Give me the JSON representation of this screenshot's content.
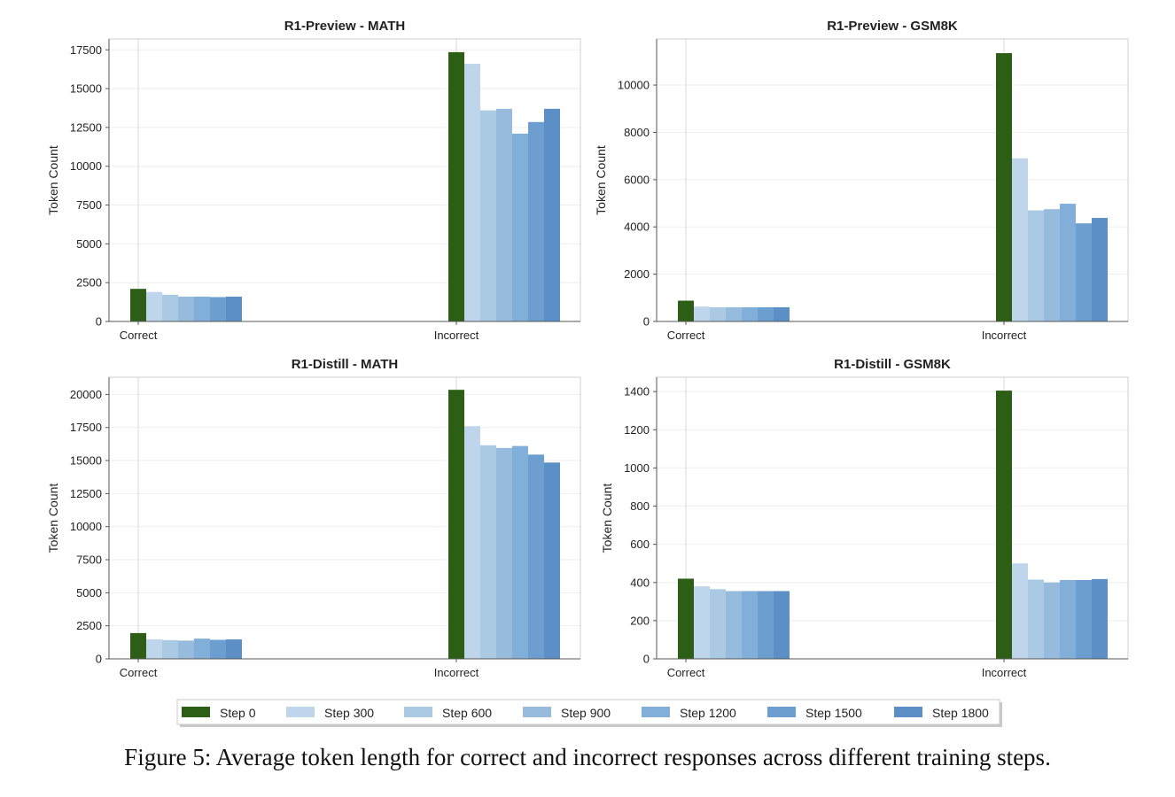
{
  "chart_data": [
    {
      "type": "bar",
      "title": "R1-Preview - MATH",
      "xlabel": "",
      "ylabel": "Token Count",
      "categories": [
        "Correct",
        "Incorrect"
      ],
      "ylim": [
        0,
        18200
      ],
      "yticks": [
        0,
        2500,
        5000,
        7500,
        10000,
        12500,
        15000,
        17500
      ],
      "grid": true,
      "series": [
        {
          "name": "Step 0",
          "values": [
            2100,
            17350
          ]
        },
        {
          "name": "Step 300",
          "values": [
            1900,
            16600
          ]
        },
        {
          "name": "Step 600",
          "values": [
            1720,
            13600
          ]
        },
        {
          "name": "Step 900",
          "values": [
            1600,
            13700
          ]
        },
        {
          "name": "Step 1200",
          "values": [
            1600,
            12100
          ]
        },
        {
          "name": "Step 1500",
          "values": [
            1570,
            12850
          ]
        },
        {
          "name": "Step 1800",
          "values": [
            1600,
            13700
          ]
        }
      ]
    },
    {
      "type": "bar",
      "title": "R1-Preview - GSM8K",
      "xlabel": "",
      "ylabel": "Token Count",
      "categories": [
        "Correct",
        "Incorrect"
      ],
      "ylim": [
        0,
        11950
      ],
      "yticks": [
        0,
        2000,
        4000,
        6000,
        8000,
        10000
      ],
      "grid": true,
      "series": [
        {
          "name": "Step 0",
          "values": [
            880,
            11350
          ]
        },
        {
          "name": "Step 300",
          "values": [
            630,
            6900
          ]
        },
        {
          "name": "Step 600",
          "values": [
            600,
            4700
          ]
        },
        {
          "name": "Step 900",
          "values": [
            600,
            4750
          ]
        },
        {
          "name": "Step 1200",
          "values": [
            600,
            4980
          ]
        },
        {
          "name": "Step 1500",
          "values": [
            600,
            4150
          ]
        },
        {
          "name": "Step 1800",
          "values": [
            600,
            4380
          ]
        }
      ]
    },
    {
      "type": "bar",
      "title": "R1-Distill - MATH",
      "xlabel": "",
      "ylabel": "Token Count",
      "categories": [
        "Correct",
        "Incorrect"
      ],
      "ylim": [
        0,
        21300
      ],
      "yticks": [
        0,
        2500,
        5000,
        7500,
        10000,
        12500,
        15000,
        17500,
        20000
      ],
      "grid": true,
      "series": [
        {
          "name": "Step 0",
          "values": [
            1950,
            20350
          ]
        },
        {
          "name": "Step 300",
          "values": [
            1480,
            17600
          ]
        },
        {
          "name": "Step 600",
          "values": [
            1420,
            16150
          ]
        },
        {
          "name": "Step 900",
          "values": [
            1380,
            15950
          ]
        },
        {
          "name": "Step 1200",
          "values": [
            1530,
            16100
          ]
        },
        {
          "name": "Step 1500",
          "values": [
            1440,
            15450
          ]
        },
        {
          "name": "Step 1800",
          "values": [
            1470,
            14850
          ]
        }
      ]
    },
    {
      "type": "bar",
      "title": "R1-Distill - GSM8K",
      "xlabel": "",
      "ylabel": "Token Count",
      "categories": [
        "Correct",
        "Incorrect"
      ],
      "ylim": [
        0,
        1475
      ],
      "yticks": [
        0,
        200,
        400,
        600,
        800,
        1000,
        1200,
        1400
      ],
      "grid": true,
      "series": [
        {
          "name": "Step 0",
          "values": [
            420,
            1405
          ]
        },
        {
          "name": "Step 300",
          "values": [
            380,
            500
          ]
        },
        {
          "name": "Step 600",
          "values": [
            365,
            415
          ]
        },
        {
          "name": "Step 900",
          "values": [
            355,
            400
          ]
        },
        {
          "name": "Step 1200",
          "values": [
            355,
            413
          ]
        },
        {
          "name": "Step 1500",
          "values": [
            355,
            413
          ]
        },
        {
          "name": "Step 1800",
          "values": [
            355,
            418
          ]
        }
      ]
    }
  ],
  "legend": {
    "position": "bottom-center",
    "items": [
      {
        "label": "Step 0",
        "color": "#2d5e16"
      },
      {
        "label": "Step 300",
        "color": "#bfd5ec"
      },
      {
        "label": "Step 600",
        "color": "#aac9e2"
      },
      {
        "label": "Step 900",
        "color": "#97bbdc"
      },
      {
        "label": "Step 1200",
        "color": "#81afd9"
      },
      {
        "label": "Step 1500",
        "color": "#6c9fd0"
      },
      {
        "label": "Step 1800",
        "color": "#5b8fc6"
      }
    ]
  },
  "caption": "Figure 5: Average token length for correct and incorrect responses across different training steps."
}
